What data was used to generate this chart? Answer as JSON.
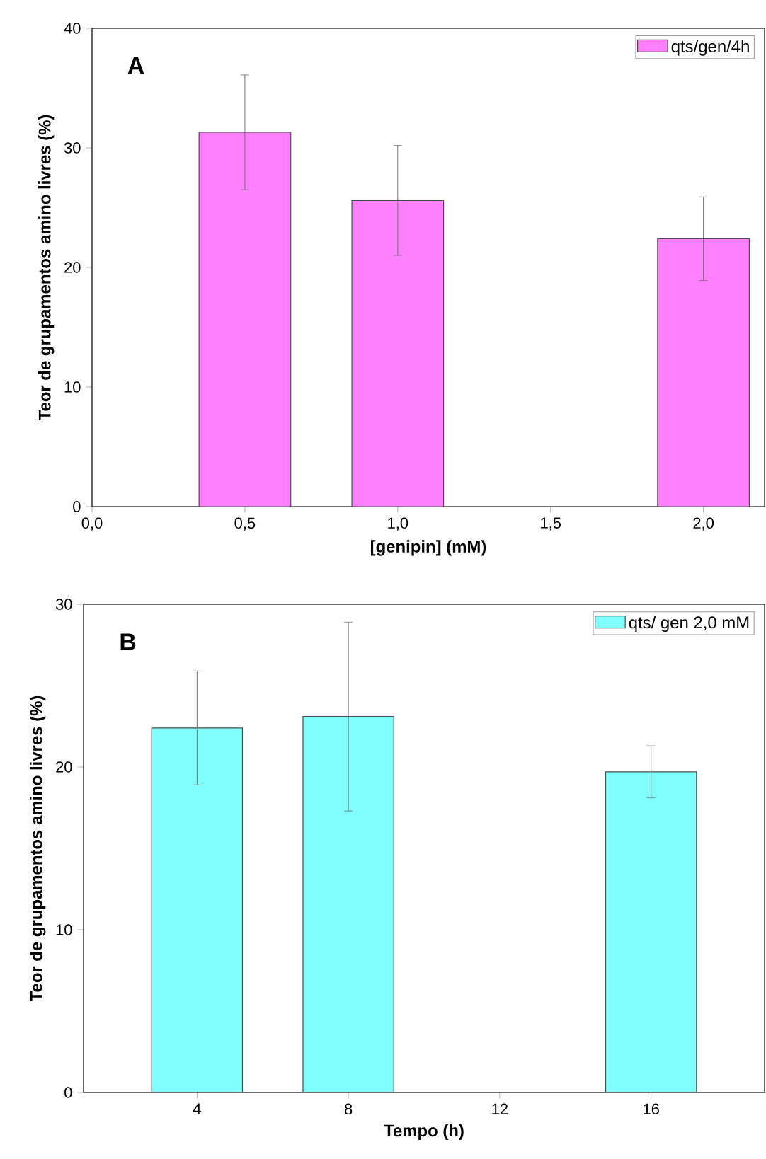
{
  "chart_data": [
    {
      "type": "bar",
      "xlabel": "[genipin] (mM)",
      "ylabel": "Teor de grupamentos amino livres (%)",
      "annotations": [
        "A"
      ],
      "legend": "top right",
      "x": [
        0.5,
        1.0,
        2.0
      ],
      "series": [
        {
          "name": "qts/gen/4h",
          "color": "#ff80ff",
          "values": [
            31.3,
            25.6,
            22.4
          ],
          "errors": [
            4.8,
            4.6,
            3.5
          ]
        }
      ],
      "xlim": [
        0,
        2.2
      ],
      "xticks": [
        {
          "value": 0,
          "label": "0,0"
        },
        {
          "value": 0.5,
          "label": "0,5"
        },
        {
          "value": 1.0,
          "label": "1,0"
        },
        {
          "value": 1.5,
          "label": "1,5"
        },
        {
          "value": 2.0,
          "label": "2,0"
        }
      ],
      "ylim": [
        0,
        40
      ],
      "yticks": [
        0,
        10,
        20,
        30,
        40
      ]
    },
    {
      "type": "bar",
      "xlabel": "Tempo (h)",
      "ylabel": "Teor de grupamentos amino livres (%)",
      "annotations": [
        "B"
      ],
      "legend": "top right",
      "x": [
        4,
        8,
        16
      ],
      "series": [
        {
          "name": "qts/ gen 2,0 mM",
          "color": "#80ffff",
          "values": [
            22.4,
            23.1,
            19.7
          ],
          "errors": [
            3.5,
            5.8,
            1.6
          ]
        }
      ],
      "xlim": [
        1,
        19
      ],
      "xticks": [
        4,
        8,
        12,
        16
      ],
      "ylim": [
        0,
        30
      ],
      "yticks": [
        0,
        10,
        20,
        30
      ]
    }
  ]
}
